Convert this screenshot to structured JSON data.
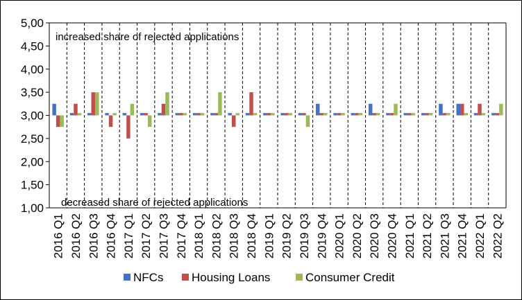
{
  "chart_data": {
    "type": "bar",
    "categories": [
      "2016 Q1",
      "2016 Q2",
      "2016 Q3",
      "2016 Q4",
      "2017 Q1",
      "2017 Q2",
      "2017 Q3",
      "2017 Q4",
      "2018 Q1",
      "2018 Q2",
      "2018 Q3",
      "2018 Q4",
      "2019 Q1",
      "2019 Q2",
      "2019 Q3",
      "2019 Q4",
      "2020 Q1",
      "2020 Q2",
      "2020 Q3",
      "2020 Q4",
      "2021 Q1",
      "2021 Q2",
      "2021 Q3",
      "2021 Q4",
      "2022 Q1",
      "2022 Q2"
    ],
    "baseline": 3.0,
    "series": [
      {
        "name": "NFCs",
        "color": "#4472C4",
        "values": [
          3.25,
          3.05,
          3.05,
          3.05,
          3.05,
          3.05,
          3.05,
          3.05,
          3.05,
          3.05,
          3.05,
          3.05,
          3.05,
          3.05,
          3.05,
          3.25,
          3.05,
          3.05,
          3.25,
          3.05,
          3.05,
          3.05,
          3.25,
          3.25,
          3.05,
          3.05
        ]
      },
      {
        "name": "Housing Loans",
        "color": "#C0504D",
        "values": [
          2.75,
          3.25,
          3.5,
          2.75,
          2.5,
          3.05,
          3.25,
          3.05,
          3.05,
          3.05,
          2.75,
          3.5,
          3.05,
          3.05,
          3.05,
          3.05,
          3.05,
          3.05,
          3.05,
          3.05,
          3.05,
          3.05,
          3.05,
          3.25,
          3.25,
          3.05
        ]
      },
      {
        "name": "Consumer Credit",
        "color": "#9BBB59",
        "values": [
          2.75,
          3.05,
          3.5,
          3.05,
          3.25,
          2.75,
          3.5,
          3.05,
          3.05,
          3.5,
          3.05,
          3.05,
          3.05,
          3.05,
          2.75,
          3.05,
          3.05,
          3.05,
          3.05,
          3.25,
          3.05,
          3.05,
          3.05,
          3.05,
          3.05,
          3.25
        ]
      }
    ],
    "ylim": [
      1.0,
      5.0
    ],
    "yticks": [
      "1,00",
      "1,50",
      "2,00",
      "2,50",
      "3,00",
      "3,50",
      "4,00",
      "4,50",
      "5,00"
    ],
    "ytick_values": [
      1.0,
      1.5,
      2.0,
      2.5,
      3.0,
      3.5,
      4.0,
      4.5,
      5.0
    ],
    "annotations": {
      "top": "increased  share of rejected applications",
      "bottom": "decreased share of rejected applications"
    },
    "grid": "vertical-dashed",
    "legend_position": "bottom"
  }
}
